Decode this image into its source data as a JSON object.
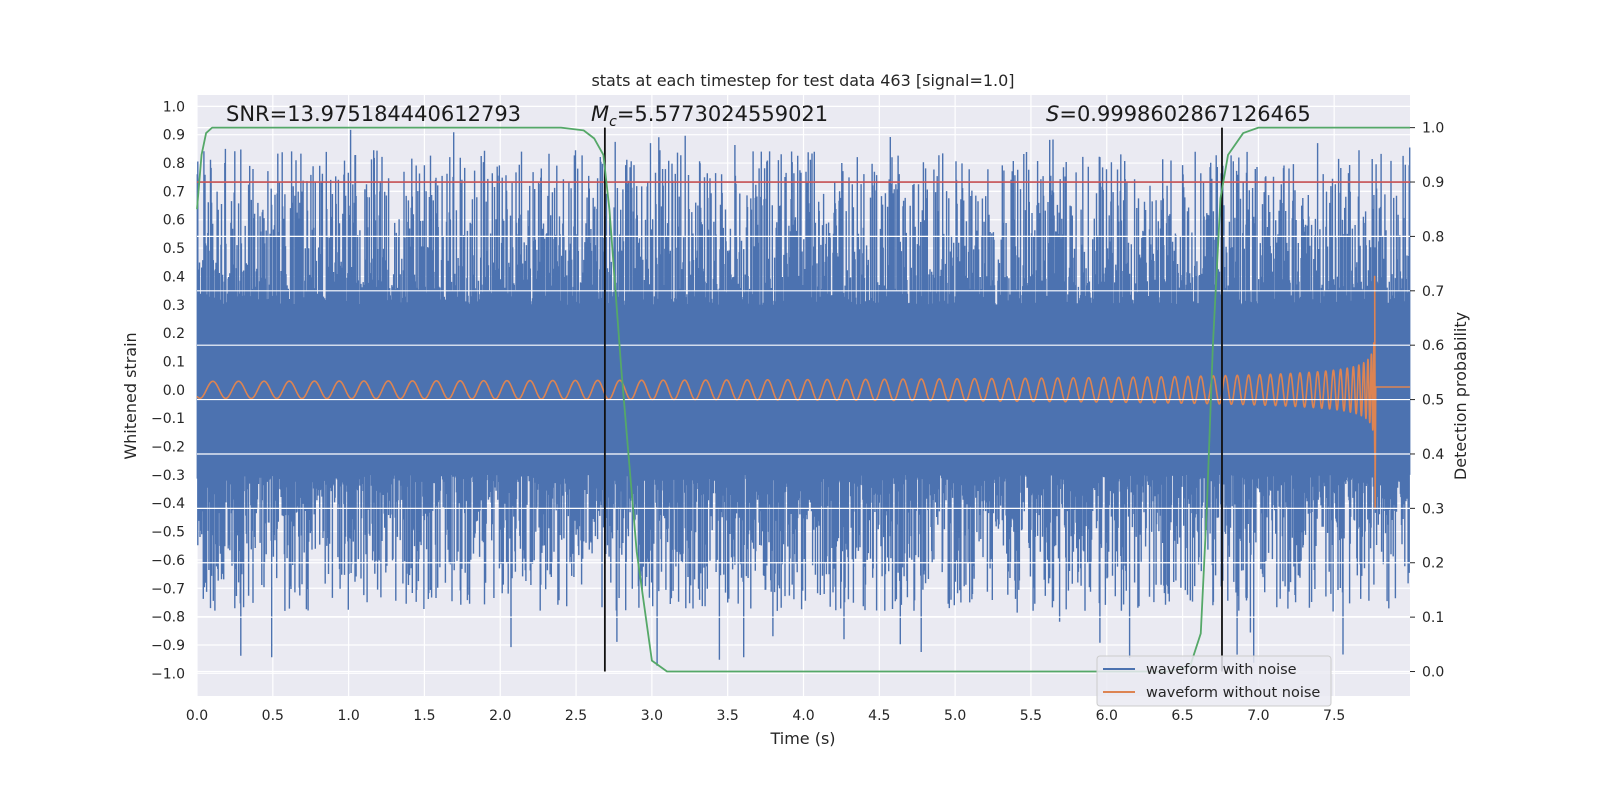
{
  "chart_data": {
    "type": "line",
    "title": "stats at each timestep for test data 463 [signal=1.0]",
    "xlabel": "Time (s)",
    "ylabel_left": "Whitened strain",
    "ylabel_right": "Detection probability",
    "xlim": [
      0.0,
      8.0
    ],
    "ylim_left": [
      -1.08,
      1.04
    ],
    "ylim_right": [
      -0.045,
      1.06
    ],
    "x_ticks": [
      "0.0",
      "0.5",
      "1.0",
      "1.5",
      "2.0",
      "2.5",
      "3.0",
      "3.5",
      "4.0",
      "4.5",
      "5.0",
      "5.5",
      "6.0",
      "6.5",
      "7.0",
      "7.5"
    ],
    "y_left_ticks": [
      "1.0",
      "0.9",
      "0.8",
      "0.7",
      "0.6",
      "0.5",
      "0.4",
      "0.3",
      "0.2",
      "0.1",
      "0.0",
      "−0.1",
      "−0.2",
      "−0.3",
      "−0.4",
      "−0.5",
      "−0.6",
      "−0.7",
      "−0.8",
      "−0.9",
      "−1.0"
    ],
    "y_right_ticks": [
      "1.0",
      "0.9",
      "0.8",
      "0.7",
      "0.6",
      "0.5",
      "0.4",
      "0.3",
      "0.2",
      "0.1",
      "0.0"
    ],
    "grid": true,
    "series": [
      {
        "name": "waveform with noise",
        "color": "#4c72b0",
        "axis": "left",
        "envelope": {
          "core_abs": 0.3,
          "peak_max": 0.93,
          "peak_min": -0.98
        }
      },
      {
        "name": "waveform without noise",
        "color": "#dd8452",
        "axis": "left",
        "chirp": {
          "t_start": 0.0,
          "t_merger": 7.77,
          "amp_start": 0.03,
          "amp_peak": 0.4,
          "amp_min": -0.42,
          "post_value": 0.01
        }
      },
      {
        "name": "detection probability",
        "color": "#55a868",
        "axis": "right",
        "x": [
          0.0,
          0.03,
          0.06,
          0.1,
          0.15,
          0.5,
          1.0,
          2.0,
          2.4,
          2.55,
          2.62,
          2.68,
          2.72,
          2.8,
          2.9,
          3.0,
          3.1,
          3.2,
          4.0,
          5.0,
          6.0,
          6.4,
          6.55,
          6.62,
          6.66,
          6.7,
          6.75,
          6.8,
          6.9,
          7.0,
          7.1,
          7.3,
          8.0
        ],
        "values": [
          0.85,
          0.95,
          0.99,
          1.0,
          1.0,
          1.0,
          1.0,
          1.0,
          1.0,
          0.995,
          0.98,
          0.95,
          0.85,
          0.55,
          0.22,
          0.02,
          0.0,
          0.0,
          0.0,
          0.0,
          0.0,
          0.0,
          0.01,
          0.07,
          0.3,
          0.6,
          0.87,
          0.95,
          0.99,
          1.0,
          1.0,
          1.0,
          1.0
        ]
      }
    ],
    "threshold": {
      "value": 0.9,
      "axis": "right",
      "color": "#c44e52"
    },
    "vlines": [
      2.69,
      6.76
    ],
    "annotations": {
      "snr": "SNR=13.975184440612793",
      "mc_prefix": "M",
      "mc_sub": "c",
      "mc_value": "=5.5773024559021",
      "s_prefix": "S",
      "s_value": "=0.9998602867126465"
    },
    "legend": {
      "position": "lower-right",
      "entries": [
        "waveform with noise",
        "waveform without noise"
      ]
    }
  }
}
